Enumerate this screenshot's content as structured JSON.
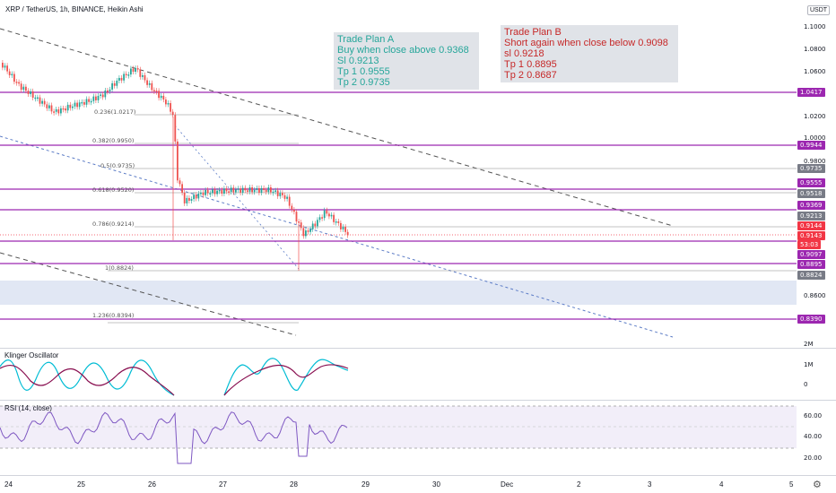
{
  "header": {
    "title": "XRP / TetherUS, 1h, BINANCE, Heikin Ashi",
    "currency_button": "USDT"
  },
  "plan_a": {
    "lines": [
      "Trade Plan A",
      "Buy when close above 0.9368",
      "Sl 0.9213",
      "Tp 1 0.9555",
      "Tp 2 0.9735"
    ],
    "color": "#26a69a"
  },
  "plan_b": {
    "lines": [
      "Trade Plan B",
      "Short again when close below 0.9098",
      "sl 0.9218",
      "Tp 1 0.8895",
      "Tp 2 0.8687"
    ],
    "color": "#c62828"
  },
  "fib_labels": [
    "0.236(1.0217)",
    "0.382(0.9950)",
    "0.5(0.9735)",
    "0.618(0.9520)",
    "0.786(0.9214)",
    "1(0.8824)",
    "1.236(0.8394)"
  ],
  "price_axis": {
    "ticks": [
      "1.1000",
      "1.0800",
      "1.0600",
      "1.0200",
      "1.0000",
      "0.9800",
      "0.8600"
    ],
    "tags": [
      "1.0417",
      "0.9944",
      "0.9735",
      "0.9555",
      "0.9518",
      "0.9369",
      "0.9213",
      "0.9144",
      "0.9143",
      "53:03",
      "0.9097",
      "0.8895",
      "0.8824",
      "0.8390"
    ]
  },
  "klinger": {
    "title": "Klinger Oscillator",
    "ticks": [
      "2M",
      "1M",
      "0"
    ]
  },
  "rsi": {
    "title": "RSI (14, close)",
    "ticks": [
      "60.00",
      "40.00",
      "20.00"
    ]
  },
  "time_axis": [
    "24",
    "25",
    "26",
    "27",
    "28",
    "29",
    "30",
    "Dec",
    "2",
    "3",
    "4",
    "5"
  ],
  "colors": {
    "level": "#9c27b0",
    "bull": "#26a69a",
    "bear": "#ef5350",
    "rsi": "#7e57c2",
    "current": "#f23645"
  }
}
